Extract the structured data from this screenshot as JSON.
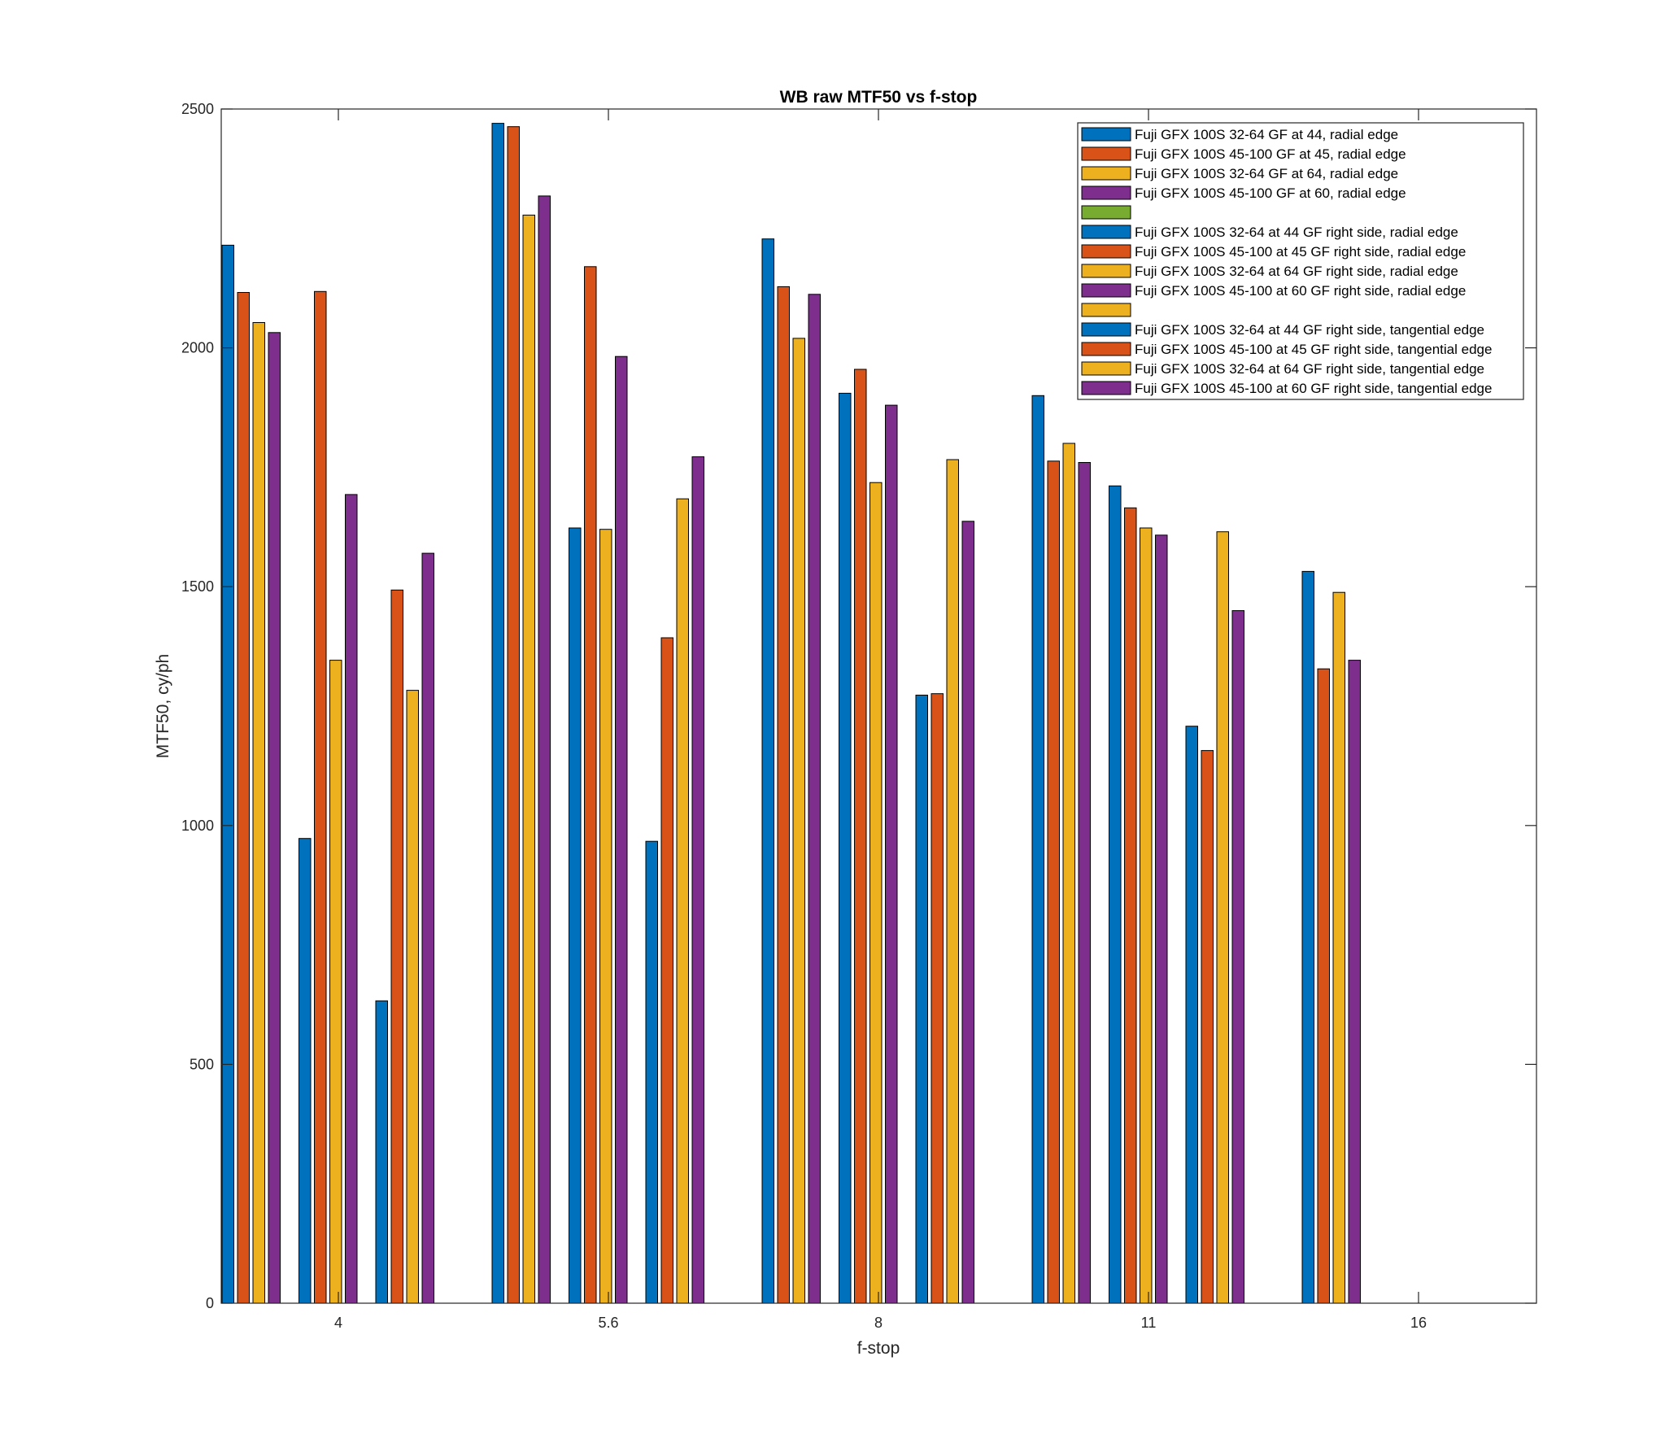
{
  "chart_data": {
    "type": "bar",
    "title": "WB raw MTF50 vs f-stop",
    "xlabel": "f-stop",
    "ylabel": "MTF50, cy/ph",
    "categories": [
      "4",
      "5.6",
      "8",
      "11",
      "16"
    ],
    "ylim": [
      0,
      2500
    ],
    "yticks": [
      0,
      500,
      1000,
      1500,
      2000,
      2500
    ],
    "grid": false,
    "legend_position": "top-right",
    "series": [
      {
        "name": "Fuji GFX 100S 32-64 GF at 44, radial edge",
        "color": "#0072BD",
        "values": [
          2215,
          2470,
          2228,
          1900,
          1532
        ]
      },
      {
        "name": "Fuji GFX 100S 45-100 GF at 45, radial edge",
        "color": "#D95319",
        "values": [
          2116,
          2463,
          2128,
          1763,
          1328
        ]
      },
      {
        "name": "Fuji GFX 100S 32-64 GF at 64, radial edge",
        "color": "#EDB120",
        "values": [
          2053,
          2278,
          2020,
          1800,
          1488
        ]
      },
      {
        "name": "Fuji GFX 100S 45-100 GF at 60, radial edge",
        "color": "#7E2F8E",
        "values": [
          2032,
          2318,
          2112,
          1760,
          1346
        ]
      },
      {
        "name": "",
        "color": "#77AC30",
        "values": [
          0,
          0,
          0,
          0,
          0
        ]
      },
      {
        "name": "Fuji GFX 100S 32-64 at 44 GF right side, radial edge",
        "color": "#0072BD",
        "values": [
          973,
          1623,
          1905,
          1711,
          0
        ]
      },
      {
        "name": "Fuji GFX 100S 45-100 at 45 GF right side, radial edge",
        "color": "#D95319",
        "values": [
          2118,
          2170,
          1955,
          1665,
          0
        ]
      },
      {
        "name": "Fuji GFX 100S 32-64 at 64 GF right side, radial edge",
        "color": "#EDB120",
        "values": [
          1346,
          1620,
          1718,
          1623,
          0
        ]
      },
      {
        "name": "Fuji GFX 100S 45-100 at 60 GF right side, radial edge",
        "color": "#7E2F8E",
        "values": [
          1693,
          1982,
          1880,
          1608,
          0
        ]
      },
      {
        "name": "",
        "color": "#EDB120",
        "values": [
          0,
          0,
          0,
          0,
          0
        ]
      },
      {
        "name": "Fuji GFX 100S 32-64 at 44 GF right side, tangential edge",
        "color": "#0072BD",
        "values": [
          633,
          967,
          1273,
          1208,
          0
        ]
      },
      {
        "name": "Fuji GFX 100S 45-100 at 45 GF right side, tangential edge",
        "color": "#D95319",
        "values": [
          1493,
          1393,
          1276,
          1157,
          0
        ]
      },
      {
        "name": "Fuji GFX 100S 32-64 at 64 GF right side, tangential edge",
        "color": "#EDB120",
        "values": [
          1283,
          1684,
          1766,
          1615,
          0
        ]
      },
      {
        "name": "Fuji GFX 100S 45-100 at 60 GF right side, tangential edge",
        "color": "#7E2F8E",
        "values": [
          1570,
          1772,
          1637,
          1450,
          0
        ]
      }
    ]
  }
}
